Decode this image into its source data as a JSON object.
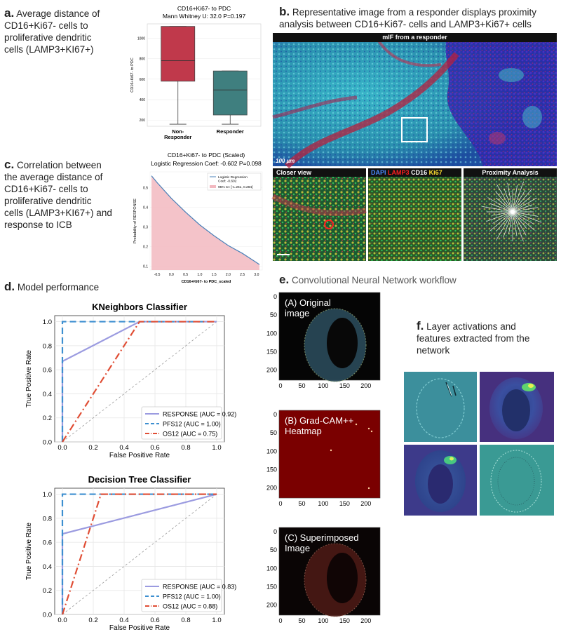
{
  "panels": {
    "a": {
      "letter": "a.",
      "caption_lines": [
        "Average  distance of",
        "CD16+Ki67- cells to",
        "proliferative dendritic",
        "cells (LAMP3+KI67+)"
      ]
    },
    "b": {
      "letter": "b.",
      "caption_lines": [
        "Representative image from a responder displays proximity",
        "analysis between CD16+Ki67- cells and LAMP3+Ki67+ cells"
      ]
    },
    "c": {
      "letter": "c.",
      "caption_lines": [
        "Correlation between",
        "the average  distance of",
        "CD16+Ki67- cells to",
        "proliferative dendritic",
        "cells (LAMP3+KI67+) and",
        "response to ICB"
      ]
    },
    "d": {
      "letter": "d.",
      "caption": "Model performance"
    },
    "e": {
      "letter": "e.",
      "caption": "Convolutional Neural Network workflow"
    },
    "f": {
      "letter": "f.",
      "caption_lines": [
        "Layer activations and",
        "features extracted from the",
        "network"
      ]
    }
  },
  "micro": {
    "title": "mIF from a responder",
    "scalebar": "100 µm",
    "subpanels": [
      "Closer view",
      "",
      "Proximity Analysis"
    ],
    "legend": [
      {
        "text": "DAPI",
        "color": "#4a8cff"
      },
      {
        "text": "LAMP3",
        "color": "#ff2020"
      },
      {
        "text": "CD16",
        "color": "#ffffff"
      },
      {
        "text": "Ki67",
        "color": "#ffe030"
      }
    ]
  },
  "cnn": {
    "labels": [
      "(A) Original\nimage",
      "(B) Grad-CAM++\nHeatmap",
      "(C) Superimposed\nImage"
    ],
    "yticks": [
      "0",
      "50",
      "100",
      "150",
      "200"
    ],
    "xticks": [
      "0",
      "50",
      "100",
      "150",
      "200"
    ]
  },
  "chart_data": [
    {
      "type": "box",
      "title": "CD16+Ki67- to PDC",
      "subtitle": "Mann Whitney U: 32.0 P=0.197",
      "ylabel": "CD16+Ki67- to PDC",
      "categories": [
        "Non-\nResponder",
        "Responder"
      ],
      "colors": [
        "#c0394b",
        "#3f7f7f"
      ],
      "ylim": [
        140,
        1140
      ],
      "yticks": [
        200,
        400,
        600,
        800,
        1000
      ],
      "boxes": [
        {
          "min": 160,
          "q1": 580,
          "median": 780,
          "q3": 1115,
          "max": 1115
        },
        {
          "min": 160,
          "q1": 250,
          "median": 495,
          "q3": 680,
          "max": 680
        }
      ]
    },
    {
      "type": "area",
      "title": "CD16+Ki67- to PDC (Scaled)",
      "subtitle": "Logistic Regression Coef: -0.602 P=0.098",
      "xlabel": "CD16+Ki67- to PDC_scaled",
      "ylabel": "Probability of RESPONSE",
      "xlim": [
        -0.75,
        3.2
      ],
      "ylim": [
        0.08,
        0.58
      ],
      "xticks": [
        -0.5,
        0.0,
        0.5,
        1.0,
        1.5,
        2.0,
        2.5,
        3.0
      ],
      "yticks": [
        0.1,
        0.2,
        0.3,
        0.4,
        0.5
      ],
      "legend": [
        "Logistic Regression\nCoef: -0.602",
        "95% CI: [-1.261, 0.284]"
      ],
      "x": [
        -0.7,
        -0.5,
        0.0,
        0.5,
        1.0,
        1.5,
        2.0,
        2.5,
        3.0,
        3.1
      ],
      "y": [
        0.56,
        0.525,
        0.445,
        0.375,
        0.31,
        0.255,
        0.205,
        0.165,
        0.118,
        0.108
      ]
    },
    {
      "type": "line",
      "title": "KNeighbors Classifier",
      "xlabel": "False Positive Rate",
      "ylabel": "True Positive Rate",
      "xlim": [
        -0.05,
        1.05
      ],
      "ylim": [
        0.0,
        1.05
      ],
      "xticks": [
        "0.0",
        "0.2",
        "0.4",
        "0.6",
        "0.8",
        "1.0"
      ],
      "yticks": [
        "0.0",
        "0.2",
        "0.4",
        "0.6",
        "0.8",
        "1.0"
      ],
      "series": [
        {
          "name": "RESPONSE (AUC = 0.92)",
          "color": "#9b9be0",
          "dash": "",
          "x": [
            0,
            0,
            0.5,
            1
          ],
          "y": [
            0,
            0.67,
            1,
            1
          ]
        },
        {
          "name": "PFS12 (AUC = 1.00)",
          "color": "#3d8fd0",
          "dash": "9,5",
          "x": [
            0,
            0,
            1
          ],
          "y": [
            0,
            1,
            1
          ]
        },
        {
          "name": "OS12 (AUC = 0.75)",
          "color": "#e04e35",
          "dash": "10,4,2,4",
          "x": [
            0,
            0.5,
            1
          ],
          "y": [
            0,
            1,
            1
          ]
        }
      ]
    },
    {
      "type": "line",
      "title": "Decision Tree Classifier",
      "xlabel": "False Positive Rate",
      "ylabel": "True Positive Rate",
      "xlim": [
        -0.05,
        1.05
      ],
      "ylim": [
        0.0,
        1.05
      ],
      "xticks": [
        "0.0",
        "0.2",
        "0.4",
        "0.6",
        "0.8",
        "1.0"
      ],
      "yticks": [
        "0.0",
        "0.2",
        "0.4",
        "0.6",
        "0.8",
        "1.0"
      ],
      "series": [
        {
          "name": "RESPONSE (AUC = 0.83)",
          "color": "#9b9be0",
          "dash": "",
          "x": [
            0,
            0,
            1
          ],
          "y": [
            0,
            0.67,
            1
          ]
        },
        {
          "name": "PFS12 (AUC = 1.00)",
          "color": "#3d8fd0",
          "dash": "9,5",
          "x": [
            0,
            0,
            1
          ],
          "y": [
            0,
            1,
            1
          ]
        },
        {
          "name": "OS12 (AUC = 0.88)",
          "color": "#e04e35",
          "dash": "10,4,2,4",
          "x": [
            0,
            0.25,
            1
          ],
          "y": [
            0,
            1,
            1
          ]
        }
      ]
    }
  ]
}
